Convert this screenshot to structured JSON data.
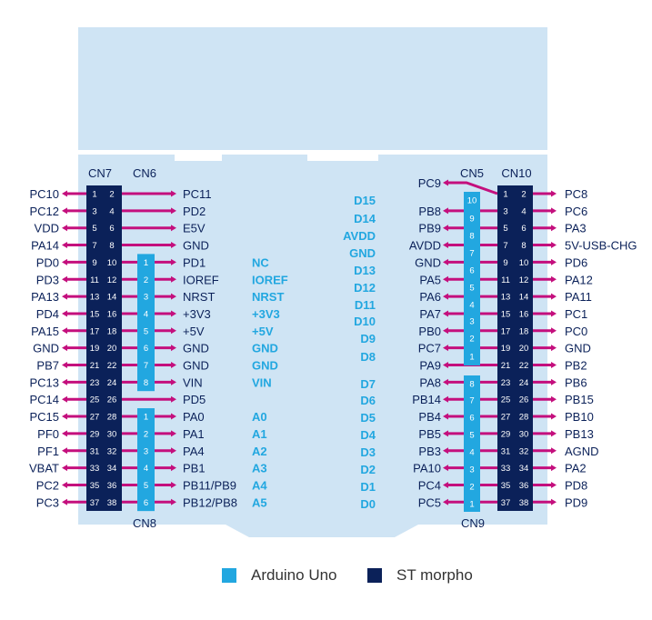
{
  "colors": {
    "board": "#cfe4f4",
    "morpho": "#0b2159",
    "arduino": "#22a7e0",
    "pin": "#c40f7d",
    "label": "#0b2159",
    "arduino_text": "#22a7e0"
  },
  "connectors": {
    "cn7": "CN7",
    "cn6": "CN6",
    "cn8": "CN8",
    "cn5": "CN5",
    "cn10": "CN10",
    "cn9": "CN9"
  },
  "cn7": {
    "pins": [
      [
        "1",
        "2"
      ],
      [
        "3",
        "4"
      ],
      [
        "5",
        "6"
      ],
      [
        "7",
        "8"
      ],
      [
        "9",
        "10"
      ],
      [
        "11",
        "12"
      ],
      [
        "13",
        "14"
      ],
      [
        "15",
        "16"
      ],
      [
        "17",
        "18"
      ],
      [
        "19",
        "20"
      ],
      [
        "21",
        "22"
      ],
      [
        "23",
        "24"
      ],
      [
        "25",
        "26"
      ],
      [
        "27",
        "28"
      ],
      [
        "29",
        "30"
      ],
      [
        "31",
        "32"
      ],
      [
        "33",
        "34"
      ],
      [
        "35",
        "36"
      ],
      [
        "37",
        "38"
      ]
    ],
    "left_labels": [
      "PC10",
      "PC12",
      "VDD",
      "PA14",
      "PD0",
      "PD3",
      "PA13",
      "PD4",
      "PA15",
      "GND",
      "PB7",
      "PC13",
      "PC14",
      "PC15",
      "PF0",
      "PF1",
      "VBAT",
      "PC2",
      "PC3"
    ],
    "right_labels": [
      "PC11",
      "PD2",
      "E5V",
      "GND",
      "PD1",
      "IOREF",
      "NRST",
      "+3V3",
      "+5V",
      "GND",
      "GND",
      "VIN",
      "PD5",
      "PA0",
      "PA1",
      "PA4",
      "PB1",
      "PB11/PB9",
      "PB12/PB8"
    ]
  },
  "cn6": {
    "pins": [
      "1",
      "2",
      "3",
      "4",
      "5",
      "6",
      "7",
      "8"
    ],
    "labels": [
      "NC",
      "IOREF",
      "NRST",
      "+3V3",
      "+5V",
      "GND",
      "GND",
      "VIN"
    ]
  },
  "cn8": {
    "pins": [
      "1",
      "2",
      "3",
      "4",
      "5",
      "6"
    ],
    "labels": [
      "A0",
      "A1",
      "A2",
      "A3",
      "A4",
      "A5"
    ]
  },
  "cn10": {
    "pins": [
      [
        "1",
        "2"
      ],
      [
        "3",
        "4"
      ],
      [
        "5",
        "6"
      ],
      [
        "7",
        "8"
      ],
      [
        "9",
        "10"
      ],
      [
        "11",
        "12"
      ],
      [
        "13",
        "14"
      ],
      [
        "15",
        "16"
      ],
      [
        "17",
        "18"
      ],
      [
        "19",
        "20"
      ],
      [
        "21",
        "22"
      ],
      [
        "23",
        "24"
      ],
      [
        "25",
        "26"
      ],
      [
        "27",
        "28"
      ],
      [
        "29",
        "30"
      ],
      [
        "31",
        "32"
      ],
      [
        "33",
        "34"
      ],
      [
        "35",
        "36"
      ],
      [
        "37",
        "38"
      ]
    ],
    "left_labels": [
      "PC9",
      "PB8",
      "PB9",
      "AVDD",
      "GND",
      "PA5",
      "PA6",
      "PA7",
      "PB0",
      "PC7",
      "PA9",
      "PA8",
      "PB14",
      "PB4",
      "PB5",
      "PB3",
      "PA10",
      "PC4",
      "PC5"
    ],
    "right_labels": [
      "PC8",
      "PC6",
      "PA3",
      "5V-USB-CHG",
      "PD6",
      "PA12",
      "PA11",
      "PC1",
      "PC0",
      "GND",
      "PB2",
      "PB6",
      "PB15",
      "PB10",
      "PB13",
      "AGND",
      "PA2",
      "PD8",
      "PD9"
    ]
  },
  "cn5": {
    "pins": [
      "10",
      "9",
      "8",
      "7",
      "6",
      "5",
      "4",
      "3",
      "2",
      "1"
    ],
    "labels": [
      "D15",
      "D14",
      "AVDD",
      "GND",
      "D13",
      "D12",
      "D11",
      "D10",
      "D9",
      "D8"
    ]
  },
  "cn9": {
    "pins": [
      "8",
      "7",
      "6",
      "5",
      "4",
      "3",
      "2",
      "1"
    ],
    "labels": [
      "D7",
      "D6",
      "D5",
      "D4",
      "D3",
      "D2",
      "D1",
      "D0"
    ]
  },
  "legend": {
    "arduino": "Arduino Uno",
    "morpho": "ST morpho"
  }
}
